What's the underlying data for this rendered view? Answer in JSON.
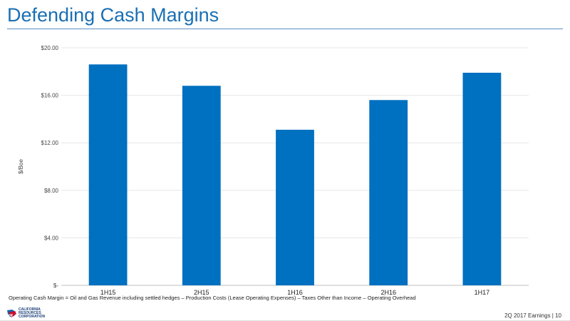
{
  "slide": {
    "title": "Defending Cash Margins",
    "footnote": "Operating Cash Margin = Oil and Gas Revenue including settled hedges – Production Costs (Lease Operating Expenses) – Taxes Other than Income – Operating Overhead",
    "footer_left_logo_lines": [
      "CALIFORNIA",
      "RESOURCES",
      "CORPORATION"
    ],
    "footer_right": "2Q 2017 Earnings | 10"
  },
  "colors": {
    "bar": "#0070c0",
    "title": "#1a6fb4",
    "grid": "#e6e6e6",
    "logo_red": "#c8102e",
    "logo_blue": "#1a5fa8"
  },
  "chart_data": {
    "type": "bar",
    "categories": [
      "1H15",
      "2H15",
      "1H16",
      "2H16",
      "1H17"
    ],
    "values": [
      18.6,
      16.8,
      13.1,
      15.6,
      17.9
    ],
    "ylabel": "$/Boe",
    "ylim": [
      0,
      20
    ],
    "yticks": [
      0,
      4,
      8,
      12,
      16,
      20
    ],
    "ytick_labels": [
      "$-",
      "$4.00",
      "$8.00",
      "$12.00",
      "$16.00",
      "$20.00"
    ],
    "grid": true,
    "legend": "none"
  }
}
